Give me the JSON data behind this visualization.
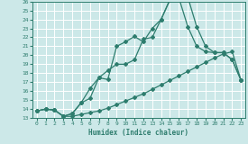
{
  "xlabel": "Humidex (Indice chaleur)",
  "background_color": "#cce8e8",
  "grid_color": "#ffffff",
  "line_color": "#2e7d6e",
  "xlim": [
    -0.5,
    23.5
  ],
  "ylim": [
    13,
    26
  ],
  "xticks": [
    0,
    1,
    2,
    3,
    4,
    5,
    6,
    7,
    8,
    9,
    10,
    11,
    12,
    13,
    14,
    15,
    16,
    17,
    18,
    19,
    20,
    21,
    22,
    23
  ],
  "yticks": [
    13,
    14,
    15,
    16,
    17,
    18,
    19,
    20,
    21,
    22,
    23,
    24,
    25,
    26
  ],
  "curve1_x": [
    0,
    1,
    2,
    3,
    4,
    5,
    6,
    7,
    8,
    9,
    10,
    11,
    12,
    13,
    14,
    15,
    16,
    17,
    18,
    19,
    20,
    21,
    22,
    23
  ],
  "curve1_y": [
    13.8,
    14.0,
    13.9,
    13.2,
    13.2,
    13.4,
    13.6,
    13.8,
    14.1,
    14.5,
    14.9,
    15.3,
    15.7,
    16.2,
    16.7,
    17.2,
    17.7,
    18.2,
    18.7,
    19.2,
    19.7,
    20.15,
    20.4,
    17.2
  ],
  "curve2_x": [
    0,
    1,
    2,
    3,
    4,
    5,
    6,
    7,
    8,
    9,
    10,
    11,
    12,
    13,
    14,
    15,
    16,
    17,
    18,
    19,
    20,
    21,
    22,
    23
  ],
  "curve2_y": [
    13.8,
    14.0,
    13.9,
    13.2,
    13.5,
    14.7,
    16.3,
    17.5,
    18.3,
    19.0,
    19.0,
    19.5,
    21.8,
    22.0,
    24.0,
    26.2,
    26.4,
    23.2,
    21.0,
    20.4,
    20.3,
    20.3,
    19.5,
    17.2
  ],
  "curve3_x": [
    0,
    1,
    2,
    3,
    4,
    5,
    6,
    7,
    8,
    9,
    10,
    11,
    12,
    13,
    14,
    15,
    16,
    17,
    18,
    19,
    20,
    21,
    22,
    23
  ],
  "curve3_y": [
    13.8,
    14.0,
    13.9,
    13.2,
    13.5,
    14.7,
    15.2,
    17.5,
    17.3,
    21.0,
    21.5,
    22.1,
    21.5,
    23.0,
    24.0,
    26.2,
    26.4,
    26.5,
    23.2,
    21.0,
    20.3,
    20.3,
    19.5,
    17.2
  ]
}
